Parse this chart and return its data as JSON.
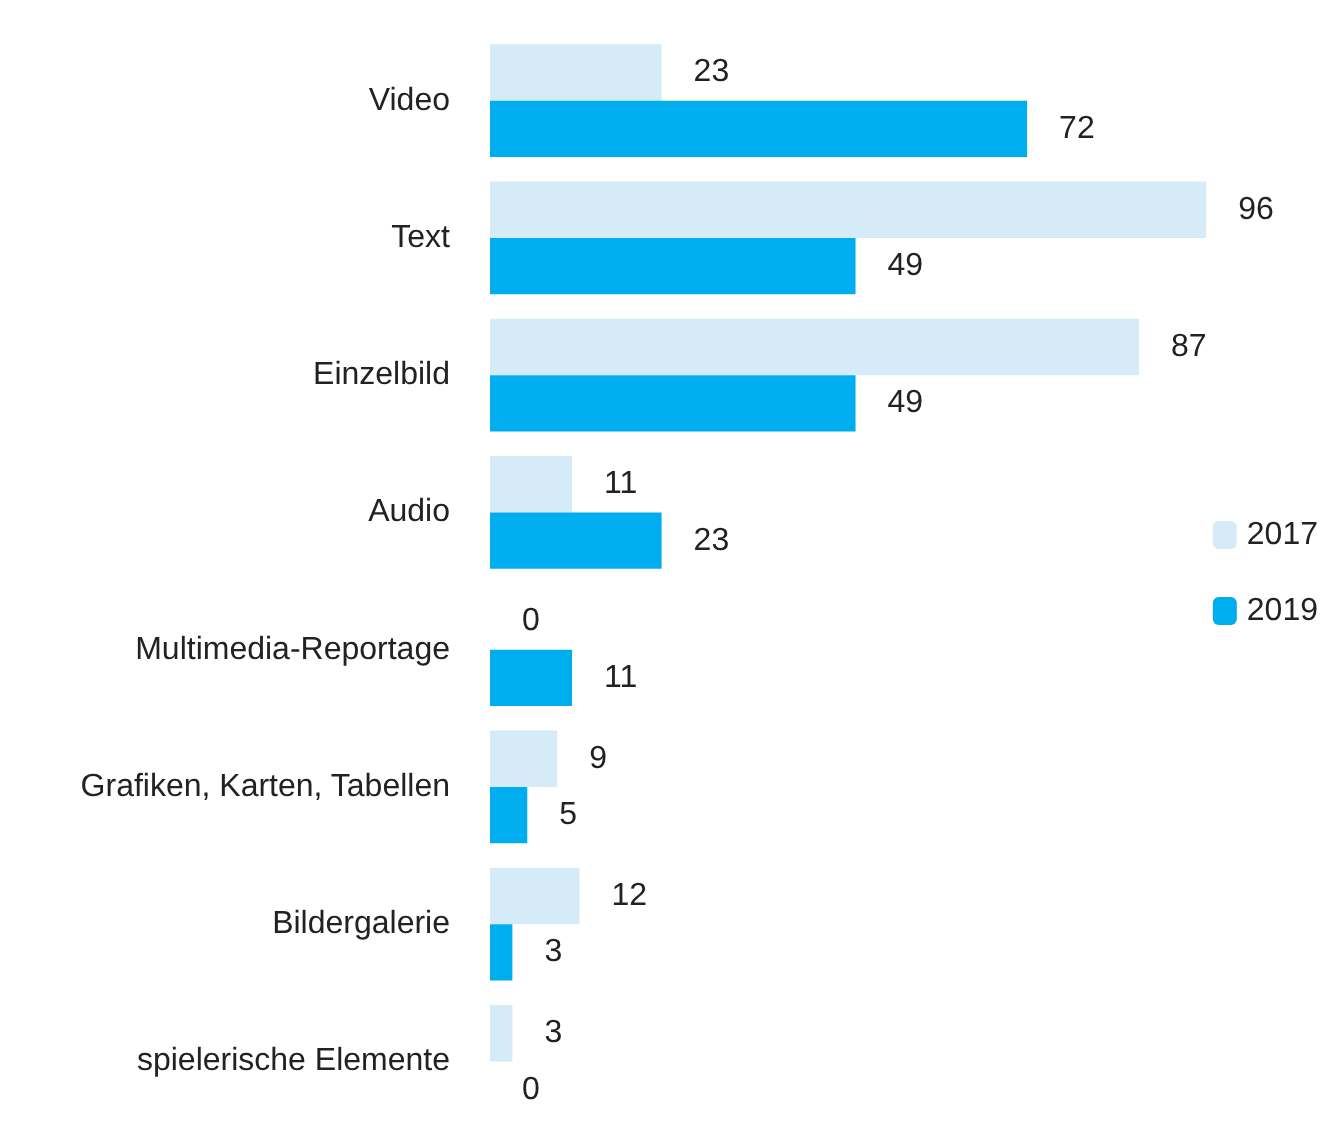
{
  "chart_data": {
    "type": "bar",
    "orientation": "horizontal",
    "categories": [
      "Video",
      "Text",
      "Einzelbild",
      "Audio",
      "Multimedia-Reportage",
      "Grafiken, Karten, Tabellen",
      "Bildergalerie",
      "spielerische Elemente"
    ],
    "series": [
      {
        "name": "2017",
        "color": "#d5ebf8",
        "values": [
          23,
          96,
          87,
          11,
          0,
          9,
          12,
          3
        ]
      },
      {
        "name": "2019",
        "color": "#00aeef",
        "values": [
          72,
          49,
          49,
          23,
          11,
          5,
          3,
          0
        ]
      }
    ],
    "data_labels": true,
    "legend": "right"
  }
}
